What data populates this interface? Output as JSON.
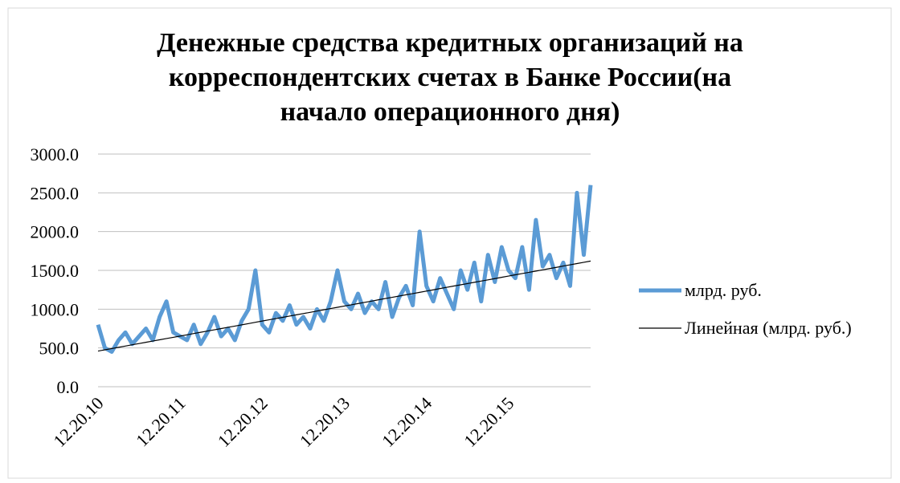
{
  "chart_data": {
    "type": "line",
    "title": [
      "Денежные средства кредитных организаций на",
      "корреспондентских счетах в Банке России(на",
      "начало операционного дня)"
    ],
    "categories": [
      "12.20.10",
      null,
      null,
      null,
      null,
      null,
      null,
      null,
      null,
      null,
      null,
      null,
      "12.20.11",
      null,
      null,
      null,
      null,
      null,
      null,
      null,
      null,
      null,
      null,
      null,
      "12.20.12",
      null,
      null,
      null,
      null,
      null,
      null,
      null,
      null,
      null,
      null,
      null,
      "12.20.13",
      null,
      null,
      null,
      null,
      null,
      null,
      null,
      null,
      null,
      null,
      null,
      "12.20.14",
      null,
      null,
      null,
      null,
      null,
      null,
      null,
      null,
      null,
      null,
      null,
      "12.20.15",
      null,
      null,
      null,
      null,
      null,
      null,
      null,
      null,
      null,
      null,
      null,
      null
    ],
    "series": [
      {
        "name": "млрд. руб.",
        "color": "#5b9bd5",
        "width": 5,
        "values": [
          800,
          500,
          450,
          600,
          700,
          550,
          650,
          750,
          600,
          900,
          1100,
          700,
          650,
          600,
          800,
          550,
          700,
          900,
          650,
          750,
          600,
          850,
          1000,
          1500,
          800,
          700,
          950,
          850,
          1050,
          800,
          900,
          750,
          1000,
          850,
          1100,
          1500,
          1100,
          1000,
          1200,
          950,
          1100,
          1000,
          1350,
          900,
          1150,
          1300,
          1050,
          2000,
          1300,
          1100,
          1400,
          1200,
          1000,
          1500,
          1250,
          1600,
          1100,
          1700,
          1350,
          1800,
          1500,
          1400,
          1800,
          1250,
          2150,
          1550,
          1700,
          1400,
          1600,
          1300,
          2500,
          1700,
          2600
        ]
      },
      {
        "name": "Линейная (млрд. руб.)",
        "color": "#000000",
        "width": 1.2,
        "values": [
          460,
          476,
          492,
          508,
          524,
          541,
          557,
          573,
          589,
          605,
          621,
          637,
          653,
          669,
          686,
          702,
          718,
          734,
          750,
          766,
          782,
          798,
          814,
          831,
          847,
          863,
          879,
          895,
          911,
          927,
          943,
          959,
          976,
          992,
          1008,
          1024,
          1040,
          1056,
          1072,
          1088,
          1104,
          1121,
          1137,
          1153,
          1169,
          1185,
          1201,
          1217,
          1233,
          1249,
          1266,
          1282,
          1298,
          1314,
          1330,
          1346,
          1362,
          1378,
          1394,
          1411,
          1427,
          1443,
          1459,
          1475,
          1491,
          1507,
          1523,
          1539,
          1556,
          1572,
          1588,
          1604,
          1620
        ]
      }
    ],
    "ylim": [
      0,
      3000
    ],
    "yticks": [
      {
        "value": 0,
        "label": "0.0"
      },
      {
        "value": 500,
        "label": "500.0"
      },
      {
        "value": 1000,
        "label": "1000.0"
      },
      {
        "value": 1500,
        "label": "1500.0"
      },
      {
        "value": 2000,
        "label": "2000.0"
      },
      {
        "value": 2500,
        "label": "2500.0"
      },
      {
        "value": 3000,
        "label": "3000.0"
      }
    ],
    "grid": true,
    "legend": "right"
  }
}
